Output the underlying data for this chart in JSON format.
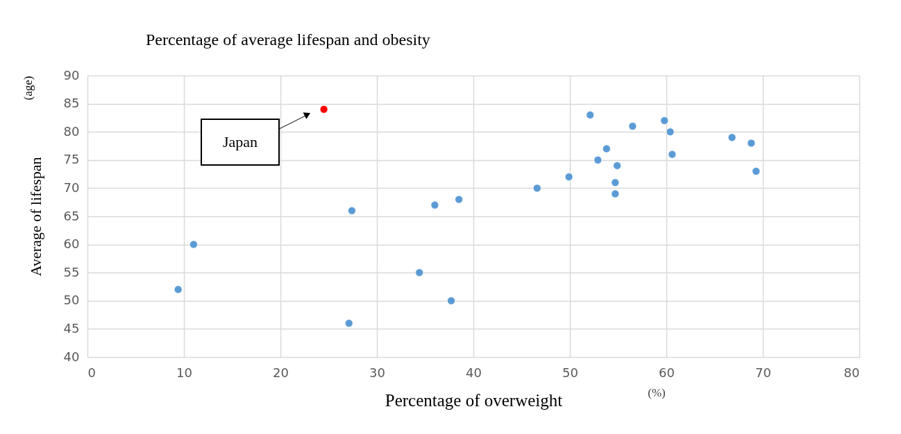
{
  "chart_data": {
    "type": "scatter",
    "title": "Percentage of average lifespan and obesity",
    "xlabel": "Percentage of overweight",
    "ylabel": "Average of lifespan",
    "x": [
      9.4,
      11.0,
      24.5,
      27.4,
      27.1,
      34.4,
      36.0,
      38.5,
      37.7,
      46.6,
      49.9,
      52.1,
      52.9,
      53.8,
      54.7,
      54.7,
      54.9,
      56.5,
      59.8,
      60.4,
      60.6,
      66.8,
      68.8,
      69.3
    ],
    "values": [
      52,
      60,
      84,
      66,
      46,
      55,
      67,
      68,
      50,
      70,
      72,
      83,
      75,
      77,
      71,
      69,
      74,
      81,
      82,
      80,
      76,
      79,
      78,
      73
    ],
    "colors": [
      "#5b9bd5",
      "#5b9bd5",
      "#ff0000",
      "#5b9bd5",
      "#5b9bd5",
      "#5b9bd5",
      "#5b9bd5",
      "#5b9bd5",
      "#5b9bd5",
      "#5b9bd5",
      "#5b9bd5",
      "#5b9bd5",
      "#5b9bd5",
      "#5b9bd5",
      "#5b9bd5",
      "#5b9bd5",
      "#5b9bd5",
      "#5b9bd5",
      "#5b9bd5",
      "#5b9bd5",
      "#5b9bd5",
      "#5b9bd5",
      "#5b9bd5",
      "#5b9bd5"
    ],
    "xlim": [
      0,
      80
    ],
    "xticks": [
      0,
      10,
      20,
      30,
      40,
      50,
      60,
      70,
      80
    ],
    "ylim": [
      40,
      90
    ],
    "yticks": [
      40,
      45,
      50,
      55,
      60,
      65,
      70,
      75,
      80,
      85,
      90
    ],
    "grid": true,
    "marker": "circle",
    "annotations": [
      "Japan",
      "(age)",
      "(%)"
    ]
  }
}
